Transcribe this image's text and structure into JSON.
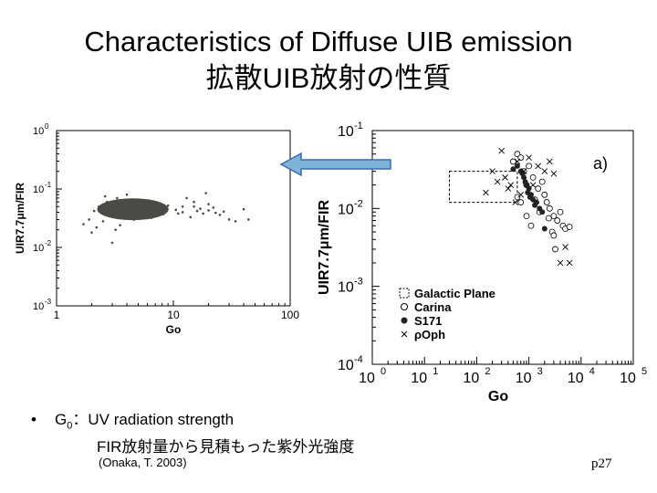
{
  "slide": {
    "title_line1": "Characteristics of Diffuse UIB emission",
    "title_line2": "拡散UIB放射の性質",
    "bullet_marker": "•",
    "bullet_term": "G",
    "bullet_term_sub": "0",
    "bullet_sep": "：",
    "bullet_text": "UV radiation strength",
    "bullet_text2": "FIR放射量から見積もった紫外光強度",
    "citation": "(Onaka, T. 2003)",
    "page_number": "p27"
  },
  "arrow": {
    "color": "#7fb2d9",
    "stroke": "#3b6ea5"
  },
  "chart_data": [
    {
      "type": "scatter",
      "xlabel": "Go",
      "ylabel": "UIR7.7μm/FIR",
      "x_scale": "log",
      "y_scale": "log",
      "xlim": [
        1,
        100
      ],
      "ylim": [
        0.001,
        1
      ],
      "x_ticks": [
        "1",
        "10",
        "100"
      ],
      "y_ticks": [
        "10",
        "10",
        "10",
        "10"
      ],
      "y_tick_exp": [
        "-3",
        "-2",
        "-1",
        "0"
      ],
      "series": [
        {
          "color": "#4a4a46",
          "cloud_center": [
            4.5,
            0.045
          ],
          "cloud_extent_x": [
            2.2,
            9.0
          ],
          "points": [
            [
              1.9,
              0.03
            ],
            [
              2.1,
              0.042
            ],
            [
              2.3,
              0.05
            ],
            [
              2.5,
              0.028
            ],
            [
              2.7,
              0.06
            ],
            [
              3.0,
              0.035
            ],
            [
              3.3,
              0.07
            ],
            [
              3.5,
              0.024
            ],
            [
              3.8,
              0.055
            ],
            [
              4.2,
              0.065
            ],
            [
              4.6,
              0.03
            ],
            [
              5.0,
              0.058
            ],
            [
              5.5,
              0.04
            ],
            [
              6.0,
              0.062
            ],
            [
              6.5,
              0.032
            ],
            [
              7.0,
              0.05
            ],
            [
              7.6,
              0.045
            ],
            [
              8.2,
              0.037
            ],
            [
              9.0,
              0.052
            ],
            [
              10.5,
              0.044
            ],
            [
              12,
              0.04
            ],
            [
              13,
              0.07
            ],
            [
              14,
              0.033
            ],
            [
              15,
              0.05
            ],
            [
              16,
              0.042
            ],
            [
              18,
              0.038
            ],
            [
              19,
              0.085
            ],
            [
              20,
              0.043
            ],
            [
              22,
              0.048
            ],
            [
              25,
              0.036
            ],
            [
              27,
              0.041
            ],
            [
              30,
              0.03
            ],
            [
              34,
              0.028
            ],
            [
              12,
              0.05
            ],
            [
              11,
              0.038
            ],
            [
              17,
              0.046
            ],
            [
              23,
              0.039
            ],
            [
              1.7,
              0.025
            ],
            [
              2.0,
              0.018
            ],
            [
              3.2,
              0.02
            ],
            [
              3.0,
              0.012
            ],
            [
              2.2,
              0.022
            ],
            [
              40,
              0.045
            ],
            [
              44,
              0.03
            ],
            [
              20,
              0.055
            ],
            [
              2.6,
              0.075
            ],
            [
              4.0,
              0.08
            ],
            [
              15,
              0.06
            ]
          ]
        }
      ]
    },
    {
      "type": "scatter",
      "panel_label": "a)",
      "xlabel": "Go",
      "ylabel": "UIR7.7μm/FIR",
      "x_scale": "log",
      "y_scale": "log",
      "xlim": [
        1,
        100000
      ],
      "ylim": [
        0.0001,
        0.1
      ],
      "x_ticks": [
        "10",
        "10",
        "10",
        "10",
        "10",
        "10"
      ],
      "x_tick_exp": [
        "0",
        "1",
        "2",
        "3",
        "4",
        "5"
      ],
      "y_ticks": [
        "10",
        "10",
        "10",
        "10"
      ],
      "y_tick_exp": [
        "-4",
        "-3",
        "-2",
        "-1"
      ],
      "legend_placement": "bottom-left",
      "galactic_plane_box": {
        "x": [
          30,
          600
        ],
        "y": [
          0.012,
          0.03
        ]
      },
      "series": [
        {
          "name": "Galactic Plane",
          "marker": "dashed-square"
        },
        {
          "name": "Carina",
          "marker": "open-circle",
          "points": [
            [
              500,
              0.04
            ],
            [
              600,
              0.05
            ],
            [
              700,
              0.045
            ],
            [
              800,
              0.03
            ],
            [
              900,
              0.02
            ],
            [
              1000,
              0.035
            ],
            [
              1200,
              0.025
            ],
            [
              1500,
              0.018
            ],
            [
              1800,
              0.022
            ],
            [
              2000,
              0.015
            ],
            [
              2200,
              0.012
            ],
            [
              2500,
              0.01
            ],
            [
              3000,
              0.008
            ],
            [
              3500,
              0.007
            ],
            [
              4000,
              0.009
            ],
            [
              4500,
              0.006
            ],
            [
              5000,
              0.0055
            ],
            [
              2800,
              0.005
            ],
            [
              3200,
              0.003
            ],
            [
              6000,
              0.0058
            ],
            [
              700,
              0.012
            ],
            [
              900,
              0.008
            ],
            [
              1100,
              0.006
            ],
            [
              600,
              0.014
            ],
            [
              1600,
              0.009
            ],
            [
              2400,
              0.0075
            ],
            [
              3000,
              0.0045
            ],
            [
              1300,
              0.013
            ]
          ]
        },
        {
          "name": "S171",
          "marker": "filled-circle",
          "points": [
            [
              600,
              0.035
            ],
            [
              700,
              0.03
            ],
            [
              800,
              0.025
            ],
            [
              900,
              0.02
            ],
            [
              1000,
              0.018
            ],
            [
              1100,
              0.015
            ],
            [
              1200,
              0.013
            ],
            [
              1400,
              0.012
            ],
            [
              1600,
              0.01
            ],
            [
              1800,
              0.009
            ],
            [
              2000,
              0.0055
            ],
            [
              750,
              0.028
            ],
            [
              850,
              0.022
            ],
            [
              950,
              0.016
            ],
            [
              1050,
              0.014
            ],
            [
              1300,
              0.011
            ],
            [
              500,
              0.032
            ]
          ]
        },
        {
          "name": "ρOph",
          "marker": "cross",
          "points": [
            [
              300,
              0.055
            ],
            [
              200,
              0.03
            ],
            [
              250,
              0.022
            ],
            [
              400,
              0.018
            ],
            [
              350,
              0.025
            ],
            [
              600,
              0.04
            ],
            [
              800,
              0.03
            ],
            [
              1000,
              0.045
            ],
            [
              1500,
              0.035
            ],
            [
              2000,
              0.03
            ],
            [
              2500,
              0.04
            ],
            [
              3000,
              0.028
            ],
            [
              4000,
              0.002
            ],
            [
              6000,
              0.002
            ],
            [
              5000,
              0.0032
            ],
            [
              1200,
              0.02
            ],
            [
              700,
              0.015
            ],
            [
              450,
              0.02
            ],
            [
              150,
              0.016
            ],
            [
              550,
              0.012
            ]
          ]
        }
      ]
    }
  ]
}
